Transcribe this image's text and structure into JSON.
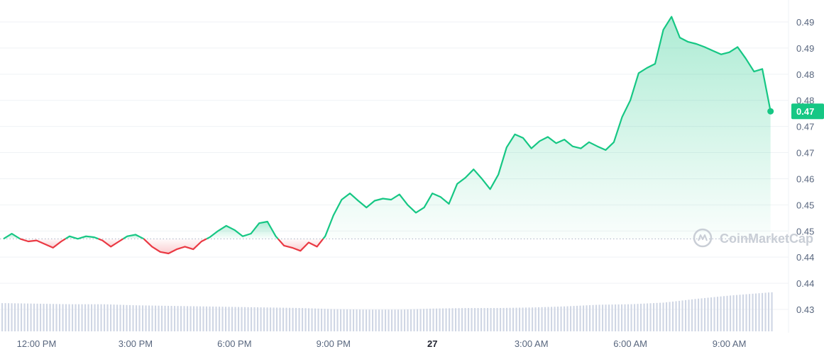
{
  "watermark": "CoinMarketCap",
  "colors": {
    "up": "#16c784",
    "down": "#ea3943",
    "volume": "#cfd6e4",
    "baseline": "#a6b0c3"
  },
  "chart_data": {
    "type": "line",
    "title": "",
    "xlabel": "",
    "ylabel": "",
    "x_ticks": [
      {
        "label": "12:00 PM",
        "t": 1
      },
      {
        "label": "3:00 PM",
        "t": 4
      },
      {
        "label": "6:00 PM",
        "t": 7
      },
      {
        "label": "9:00 PM",
        "t": 10
      },
      {
        "label": "27",
        "t": 13,
        "bold": true
      },
      {
        "label": "3:00 AM",
        "t": 16
      },
      {
        "label": "6:00 AM",
        "t": 19
      },
      {
        "label": "9:00 AM",
        "t": 22
      }
    ],
    "y_ticks": [
      "0.49",
      "0.49",
      "0.48",
      "0.48",
      "0.47",
      "0.47",
      "0.46",
      "0.45",
      "0.45",
      "0.44",
      "0.44",
      "0.43"
    ],
    "y_tick_values": [
      0.491,
      0.486,
      0.481,
      0.476,
      0.471,
      0.466,
      0.461,
      0.456,
      0.451,
      0.446,
      0.441,
      0.436
    ],
    "ylim": [
      0.4335,
      0.4935
    ],
    "xlim": [
      0,
      23.3
    ],
    "baseline": 0.4495,
    "last_price": "0.47",
    "last_value": 0.4739,
    "price_series": {
      "name": "",
      "t": [
        0,
        0.25,
        0.5,
        0.75,
        1,
        1.25,
        1.5,
        1.75,
        2,
        2.25,
        2.5,
        2.75,
        3,
        3.25,
        3.5,
        3.75,
        4,
        4.25,
        4.5,
        4.75,
        5,
        5.25,
        5.5,
        5.75,
        6,
        6.25,
        6.5,
        6.75,
        7,
        7.25,
        7.5,
        7.75,
        8,
        8.25,
        8.5,
        8.75,
        9,
        9.25,
        9.5,
        9.75,
        10,
        10.25,
        10.5,
        10.75,
        11,
        11.25,
        11.5,
        11.75,
        12,
        12.25,
        12.5,
        12.75,
        13,
        13.25,
        13.5,
        13.75,
        14,
        14.25,
        14.5,
        14.75,
        15,
        15.25,
        15.5,
        15.75,
        16,
        16.25,
        16.5,
        16.75,
        17,
        17.25,
        17.5,
        17.75,
        18,
        18.25,
        18.5,
        18.75,
        19,
        19.25,
        19.5,
        19.75,
        20,
        20.25,
        20.5,
        20.75,
        21,
        21.25,
        21.5,
        21.75,
        22,
        22.25,
        22.5,
        22.75,
        23,
        23.25
      ],
      "values": [
        0.4495,
        0.4505,
        0.4495,
        0.449,
        0.4492,
        0.4485,
        0.4478,
        0.449,
        0.45,
        0.4495,
        0.45,
        0.4498,
        0.4492,
        0.448,
        0.449,
        0.45,
        0.4503,
        0.4495,
        0.448,
        0.447,
        0.4467,
        0.4475,
        0.448,
        0.4475,
        0.449,
        0.4498,
        0.451,
        0.452,
        0.4512,
        0.45,
        0.4505,
        0.4525,
        0.4528,
        0.45,
        0.4482,
        0.4478,
        0.4472,
        0.4488,
        0.448,
        0.45,
        0.454,
        0.457,
        0.4582,
        0.4568,
        0.4555,
        0.4568,
        0.4572,
        0.457,
        0.458,
        0.456,
        0.4545,
        0.4555,
        0.4582,
        0.4575,
        0.4562,
        0.46,
        0.4612,
        0.4628,
        0.461,
        0.459,
        0.4618,
        0.467,
        0.4695,
        0.4688,
        0.4668,
        0.4682,
        0.469,
        0.4678,
        0.4685,
        0.4672,
        0.4668,
        0.468,
        0.4672,
        0.4665,
        0.468,
        0.4728,
        0.476,
        0.4812,
        0.4822,
        0.483,
        0.4895,
        0.492,
        0.488,
        0.4872,
        0.4868,
        0.4862,
        0.4855,
        0.4848,
        0.4852,
        0.4862,
        0.484,
        0.4815,
        0.482,
        0.4739
      ]
    },
    "volume_series": {
      "name": "",
      "t": [
        0,
        1,
        2,
        3,
        4,
        5,
        6,
        7,
        8,
        9,
        10,
        11,
        12,
        13,
        14,
        15,
        16,
        17,
        18,
        19,
        20,
        21,
        22,
        23.25
      ],
      "values": [
        0.52,
        0.51,
        0.5,
        0.5,
        0.48,
        0.47,
        0.46,
        0.45,
        0.44,
        0.43,
        0.41,
        0.4,
        0.4,
        0.42,
        0.43,
        0.43,
        0.44,
        0.46,
        0.49,
        0.5,
        0.53,
        0.6,
        0.66,
        0.72
      ]
    }
  }
}
